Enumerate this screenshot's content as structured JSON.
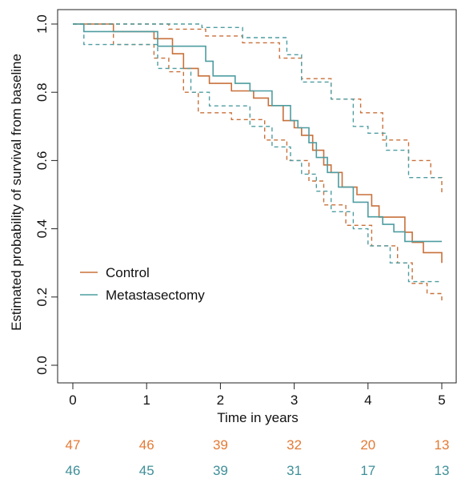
{
  "chart_data": {
    "type": "line",
    "title": "",
    "xlabel": "Time in years",
    "ylabel": "Estimated probability of survival from baseline",
    "xlim": [
      0,
      5
    ],
    "ylim": [
      0,
      1
    ],
    "x_ticks": [
      "0",
      "1",
      "2",
      "3",
      "4",
      "5"
    ],
    "y_ticks": [
      "0.0",
      "0.2",
      "0.4",
      "0.6",
      "0.8",
      "1.0"
    ],
    "grid": false,
    "legend_position": "center-left",
    "legend": [
      "Control",
      "Metastasectomy"
    ],
    "series": [
      {
        "name": "Control",
        "color": "#c8703a",
        "style": "solid",
        "points": [
          [
            0,
            1.0
          ],
          [
            0.55,
            1.0
          ],
          [
            0.55,
            0.978
          ],
          [
            1.1,
            0.978
          ],
          [
            1.1,
            0.957
          ],
          [
            1.35,
            0.957
          ],
          [
            1.35,
            0.913
          ],
          [
            1.5,
            0.913
          ],
          [
            1.5,
            0.87
          ],
          [
            1.7,
            0.87
          ],
          [
            1.7,
            0.848
          ],
          [
            1.85,
            0.848
          ],
          [
            1.85,
            0.826
          ],
          [
            2.15,
            0.826
          ],
          [
            2.15,
            0.804
          ],
          [
            2.45,
            0.804
          ],
          [
            2.45,
            0.783
          ],
          [
            2.65,
            0.783
          ],
          [
            2.65,
            0.761
          ],
          [
            2.85,
            0.761
          ],
          [
            2.85,
            0.717
          ],
          [
            3.0,
            0.717
          ],
          [
            3.0,
            0.696
          ],
          [
            3.1,
            0.696
          ],
          [
            3.1,
            0.674
          ],
          [
            3.25,
            0.674
          ],
          [
            3.25,
            0.63
          ],
          [
            3.4,
            0.63
          ],
          [
            3.4,
            0.587
          ],
          [
            3.5,
            0.587
          ],
          [
            3.5,
            0.565
          ],
          [
            3.65,
            0.565
          ],
          [
            3.65,
            0.522
          ],
          [
            3.85,
            0.522
          ],
          [
            3.85,
            0.5
          ],
          [
            4.05,
            0.5
          ],
          [
            4.05,
            0.467
          ],
          [
            4.15,
            0.467
          ],
          [
            4.15,
            0.434
          ],
          [
            4.5,
            0.434
          ],
          [
            4.5,
            0.39
          ],
          [
            4.6,
            0.39
          ],
          [
            4.6,
            0.36
          ],
          [
            4.75,
            0.36
          ],
          [
            4.75,
            0.33
          ],
          [
            5.0,
            0.33
          ],
          [
            5.0,
            0.3
          ]
        ]
      },
      {
        "name": "Control upper CI",
        "color": "#c8703a",
        "style": "dashed",
        "points": [
          [
            0,
            1.0
          ],
          [
            1.3,
            1.0
          ],
          [
            1.3,
            0.985
          ],
          [
            1.8,
            0.985
          ],
          [
            1.8,
            0.965
          ],
          [
            2.3,
            0.965
          ],
          [
            2.3,
            0.945
          ],
          [
            2.8,
            0.945
          ],
          [
            2.8,
            0.9
          ],
          [
            3.1,
            0.9
          ],
          [
            3.1,
            0.84
          ],
          [
            3.5,
            0.84
          ],
          [
            3.5,
            0.78
          ],
          [
            3.9,
            0.78
          ],
          [
            3.9,
            0.74
          ],
          [
            4.2,
            0.74
          ],
          [
            4.2,
            0.66
          ],
          [
            4.55,
            0.66
          ],
          [
            4.55,
            0.6
          ],
          [
            4.85,
            0.6
          ],
          [
            4.85,
            0.55
          ],
          [
            5.0,
            0.55
          ],
          [
            5.0,
            0.5
          ]
        ]
      },
      {
        "name": "Control lower CI",
        "color": "#c8703a",
        "style": "dashed",
        "points": [
          [
            0,
            1.0
          ],
          [
            0.55,
            1.0
          ],
          [
            0.55,
            0.94
          ],
          [
            1.1,
            0.94
          ],
          [
            1.1,
            0.9
          ],
          [
            1.3,
            0.9
          ],
          [
            1.3,
            0.86
          ],
          [
            1.5,
            0.86
          ],
          [
            1.5,
            0.8
          ],
          [
            1.7,
            0.8
          ],
          [
            1.7,
            0.74
          ],
          [
            2.15,
            0.74
          ],
          [
            2.15,
            0.72
          ],
          [
            2.6,
            0.72
          ],
          [
            2.6,
            0.66
          ],
          [
            2.9,
            0.66
          ],
          [
            2.9,
            0.6
          ],
          [
            3.2,
            0.6
          ],
          [
            3.2,
            0.54
          ],
          [
            3.4,
            0.54
          ],
          [
            3.4,
            0.47
          ],
          [
            3.7,
            0.47
          ],
          [
            3.7,
            0.41
          ],
          [
            4.05,
            0.41
          ],
          [
            4.05,
            0.35
          ],
          [
            4.4,
            0.35
          ],
          [
            4.4,
            0.3
          ],
          [
            4.6,
            0.3
          ],
          [
            4.6,
            0.24
          ],
          [
            4.8,
            0.24
          ],
          [
            4.8,
            0.21
          ],
          [
            5.0,
            0.21
          ],
          [
            5.0,
            0.19
          ]
        ]
      },
      {
        "name": "Metastasectomy",
        "color": "#4e9da1",
        "style": "solid",
        "points": [
          [
            0,
            1.0
          ],
          [
            0.15,
            1.0
          ],
          [
            0.15,
            0.978
          ],
          [
            1.15,
            0.978
          ],
          [
            1.15,
            0.935
          ],
          [
            1.8,
            0.935
          ],
          [
            1.8,
            0.891
          ],
          [
            1.9,
            0.891
          ],
          [
            1.9,
            0.848
          ],
          [
            2.2,
            0.848
          ],
          [
            2.2,
            0.826
          ],
          [
            2.4,
            0.826
          ],
          [
            2.4,
            0.804
          ],
          [
            2.7,
            0.804
          ],
          [
            2.7,
            0.761
          ],
          [
            2.95,
            0.761
          ],
          [
            2.95,
            0.717
          ],
          [
            3.05,
            0.717
          ],
          [
            3.05,
            0.696
          ],
          [
            3.2,
            0.696
          ],
          [
            3.2,
            0.652
          ],
          [
            3.3,
            0.652
          ],
          [
            3.3,
            0.609
          ],
          [
            3.45,
            0.609
          ],
          [
            3.45,
            0.565
          ],
          [
            3.6,
            0.565
          ],
          [
            3.6,
            0.522
          ],
          [
            3.8,
            0.522
          ],
          [
            3.8,
            0.478
          ],
          [
            4.0,
            0.478
          ],
          [
            4.0,
            0.435
          ],
          [
            4.2,
            0.435
          ],
          [
            4.2,
            0.413
          ],
          [
            4.35,
            0.413
          ],
          [
            4.35,
            0.391
          ],
          [
            4.5,
            0.391
          ],
          [
            4.5,
            0.363
          ],
          [
            5.0,
            0.363
          ]
        ]
      },
      {
        "name": "Metastasectomy upper CI",
        "color": "#4e9da1",
        "style": "dashed",
        "points": [
          [
            0,
            1.0
          ],
          [
            1.75,
            1.0
          ],
          [
            1.75,
            0.99
          ],
          [
            2.3,
            0.99
          ],
          [
            2.3,
            0.96
          ],
          [
            2.9,
            0.96
          ],
          [
            2.9,
            0.91
          ],
          [
            3.1,
            0.91
          ],
          [
            3.1,
            0.83
          ],
          [
            3.5,
            0.83
          ],
          [
            3.5,
            0.78
          ],
          [
            3.8,
            0.78
          ],
          [
            3.8,
            0.7
          ],
          [
            4.0,
            0.7
          ],
          [
            4.0,
            0.68
          ],
          [
            4.25,
            0.68
          ],
          [
            4.25,
            0.63
          ],
          [
            4.55,
            0.63
          ],
          [
            4.55,
            0.55
          ],
          [
            5.0,
            0.55
          ]
        ]
      },
      {
        "name": "Metastasectomy lower CI",
        "color": "#4e9da1",
        "style": "dashed",
        "points": [
          [
            0,
            1.0
          ],
          [
            0.15,
            1.0
          ],
          [
            0.15,
            0.94
          ],
          [
            1.15,
            0.94
          ],
          [
            1.15,
            0.87
          ],
          [
            1.6,
            0.87
          ],
          [
            1.6,
            0.8
          ],
          [
            1.85,
            0.8
          ],
          [
            1.85,
            0.76
          ],
          [
            2.4,
            0.76
          ],
          [
            2.4,
            0.7
          ],
          [
            2.7,
            0.7
          ],
          [
            2.7,
            0.64
          ],
          [
            2.95,
            0.64
          ],
          [
            2.95,
            0.6
          ],
          [
            3.1,
            0.6
          ],
          [
            3.1,
            0.56
          ],
          [
            3.3,
            0.56
          ],
          [
            3.3,
            0.51
          ],
          [
            3.5,
            0.51
          ],
          [
            3.5,
            0.45
          ],
          [
            3.8,
            0.45
          ],
          [
            3.8,
            0.4
          ],
          [
            4.0,
            0.4
          ],
          [
            4.0,
            0.35
          ],
          [
            4.3,
            0.35
          ],
          [
            4.3,
            0.3
          ],
          [
            4.55,
            0.3
          ],
          [
            4.55,
            0.245
          ],
          [
            5.0,
            0.245
          ]
        ]
      }
    ],
    "at_risk": [
      {
        "name": "Control",
        "color": "#e37a35",
        "values": [
          "47",
          "46",
          "39",
          "32",
          "20",
          "13"
        ]
      },
      {
        "name": "Metastasectomy",
        "color": "#3f8f98",
        "values": [
          "46",
          "45",
          "39",
          "31",
          "17",
          "13"
        ]
      }
    ]
  }
}
